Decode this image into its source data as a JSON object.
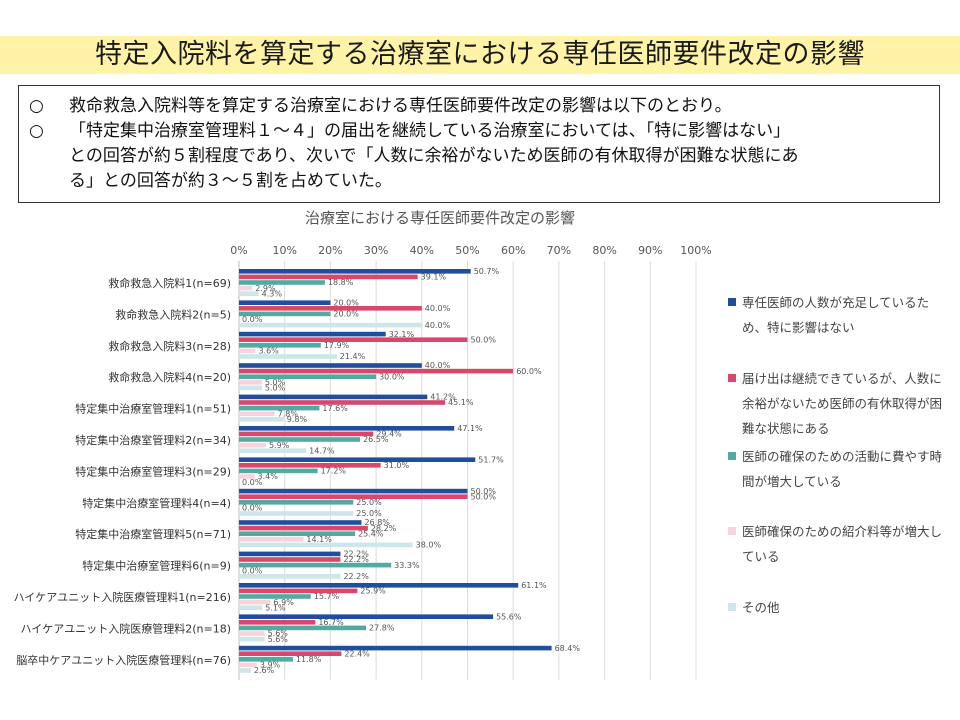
{
  "page": {
    "title": "特定入院料を算定する治療室における専任医師要件改定の影響"
  },
  "summary": {
    "bullet": "○",
    "line1": "救命救急入院料等を算定する治療室における専任医師要件改定の影響は以下のとおり。",
    "line2": "「特定集中治療室管理料１～４」の届出を継続している治療室においては、「特に影響はない」",
    "line3": "との回答が約５割程度であり、次いで「人数に余裕がないため医師の有休取得が困難な状態にあ",
    "line4": "る」との回答が約３～５割を占めていた。"
  },
  "colors": {
    "title_banner": "#fff3a8",
    "series": [
      "#1f4e9c",
      "#d9476b",
      "#52aaa3",
      "#f7d4db",
      "#cce6ea"
    ]
  },
  "chart_data": {
    "type": "bar",
    "orientation": "horizontal",
    "title": "治療室における専任医師要件改定の影響",
    "xlim": [
      0,
      100
    ],
    "x_ticks": [
      "0%",
      "10%",
      "20%",
      "30%",
      "40%",
      "50%",
      "60%",
      "70%",
      "80%",
      "90%",
      "100%"
    ],
    "grid": true,
    "legend_position": "right",
    "categories": [
      "救命救急入院料1(n=69)",
      "救命救急入院料2(n=5)",
      "救命救急入院料3(n=28)",
      "救命救急入院料4(n=20)",
      "特定集中治療室管理料1(n=51)",
      "特定集中治療室管理料2(n=34)",
      "特定集中治療室管理料3(n=29)",
      "特定集中治療室管理料4(n=4)",
      "特定集中治療室管理料5(n=71)",
      "特定集中治療室管理料6(n=9)",
      "ハイケアユニット入院医療管理料1(n=216)",
      "ハイケアユニット入院医療管理料2(n=18)",
      "脳卒中ケアユニット入院医療管理料(n=76)"
    ],
    "series": [
      {
        "name": "専任医師の人数が充足しているため、特に影響はない",
        "legend_lines": [
          "専任医師の人数が充足しているた",
          "め、特に影響はない"
        ],
        "values": [
          50.7,
          20.0,
          32.1,
          40.0,
          41.2,
          47.1,
          51.7,
          50.0,
          26.8,
          22.2,
          61.1,
          55.6,
          68.4
        ]
      },
      {
        "name": "届け出は継続できているが、人数に余裕がないため医師の有休取得が困難な状態にある",
        "legend_lines": [
          "届け出は継続できているが、人数に",
          "余裕がないため医師の有休取得が困",
          "難な状態にある"
        ],
        "values": [
          39.1,
          40.0,
          50.0,
          60.0,
          45.1,
          29.4,
          31.0,
          50.0,
          28.2,
          22.2,
          25.9,
          16.7,
          22.4
        ]
      },
      {
        "name": "医師の確保のための活動に費やす時間が増大している",
        "legend_lines": [
          "医師の確保のための活動に費やす時",
          "間が増大している"
        ],
        "values": [
          18.8,
          20.0,
          17.9,
          30.0,
          17.6,
          26.5,
          17.2,
          25.0,
          25.4,
          33.3,
          15.7,
          27.8,
          11.8
        ]
      },
      {
        "name": "医師確保のための紹介料等が増大している",
        "legend_lines": [
          "医師確保のための紹介料等が増大し",
          "ている"
        ],
        "values": [
          2.9,
          0.0,
          3.6,
          5.0,
          7.8,
          5.9,
          3.4,
          0.0,
          14.1,
          0.0,
          6.9,
          5.6,
          3.9
        ]
      },
      {
        "name": "その他",
        "legend_lines": [
          "その他"
        ],
        "values": [
          4.3,
          40.0,
          21.4,
          5.0,
          9.8,
          14.7,
          0.0,
          25.0,
          38.0,
          22.2,
          5.1,
          5.6,
          2.6
        ]
      }
    ]
  }
}
